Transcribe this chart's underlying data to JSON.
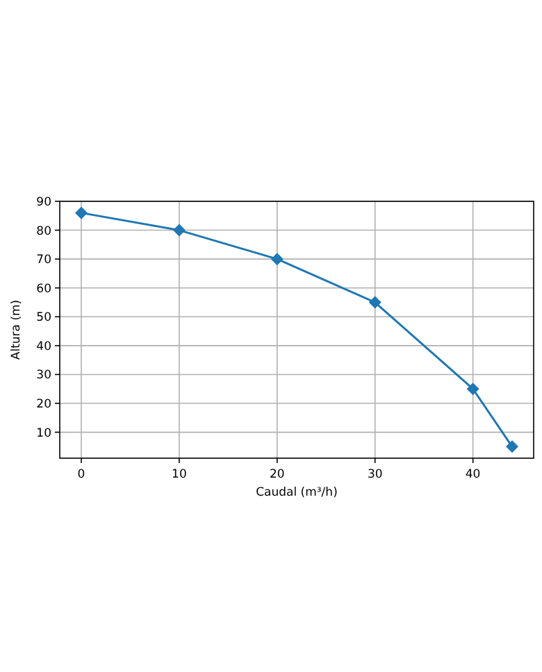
{
  "chart_data": {
    "type": "line",
    "xlabel": "Caudal (m³/h)",
    "ylabel": "Altura (m)",
    "x": [
      0,
      10,
      20,
      30,
      40,
      44
    ],
    "series": [
      {
        "color": "#1f77b4",
        "values": [
          86,
          80,
          70,
          55,
          25,
          5
        ]
      }
    ],
    "xlim": [
      -2.2,
      46.2
    ],
    "xticks": [
      0,
      10,
      20,
      30,
      40
    ],
    "ylim": [
      1,
      90
    ],
    "yticks": [
      10,
      20,
      30,
      40,
      50,
      60,
      70,
      80,
      90
    ],
    "grid": true,
    "marker": "diamond",
    "line_style": "solid"
  }
}
